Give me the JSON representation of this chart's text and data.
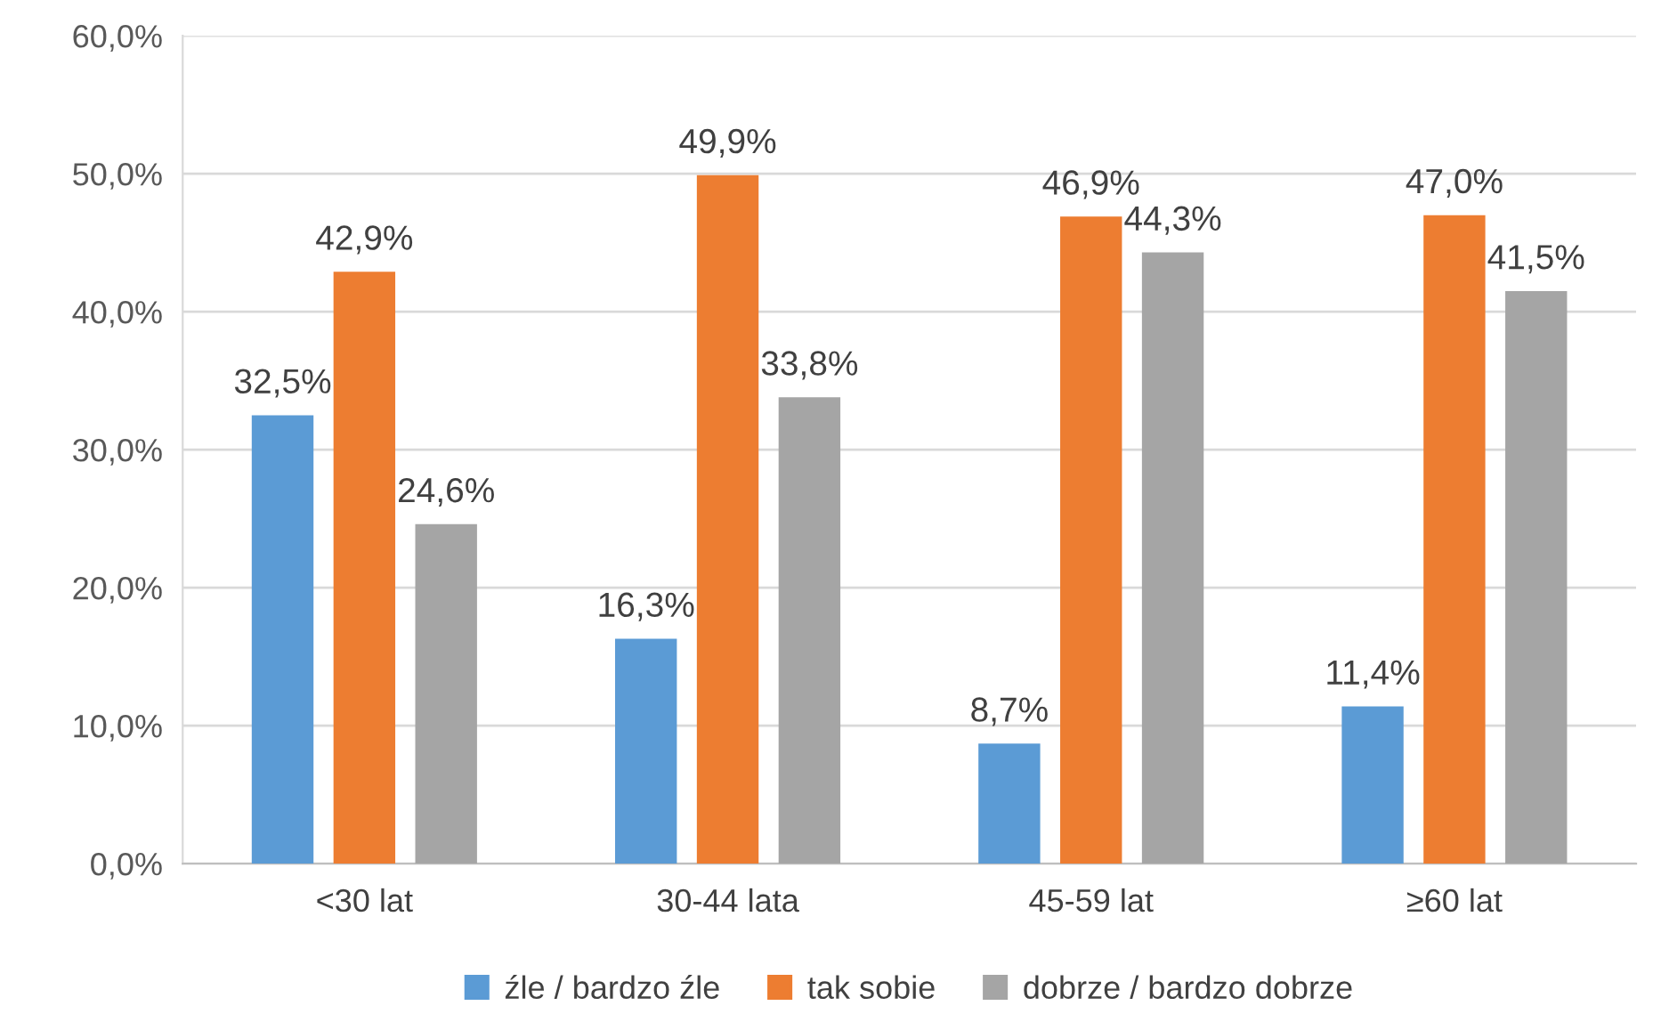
{
  "chart_data": {
    "type": "bar",
    "categories": [
      "<30 lat",
      "30-44 lata",
      "45-59 lat",
      "≥60 lat"
    ],
    "series": [
      {
        "name": "źle / bardzo źle",
        "color": "#5b9bd5",
        "values": [
          32.5,
          16.3,
          8.7,
          11.4
        ],
        "value_labels": [
          "32,5%",
          "16,3%",
          "8,7%",
          "11,4%"
        ]
      },
      {
        "name": "tak sobie",
        "color": "#ed7d31",
        "values": [
          42.9,
          49.9,
          46.9,
          47.0
        ],
        "value_labels": [
          "42,9%",
          "49,9%",
          "46,9%",
          "47,0%"
        ]
      },
      {
        "name": "dobrze / bardzo dobrze",
        "color": "#a5a5a5",
        "values": [
          24.6,
          33.8,
          44.3,
          41.5
        ],
        "value_labels": [
          "24,6%",
          "33,8%",
          "44,3%",
          "41,5%"
        ]
      }
    ],
    "ylim": [
      0,
      60
    ],
    "yticks": [
      {
        "value": 0,
        "label": "0,0%"
      },
      {
        "value": 10,
        "label": "10,0%"
      },
      {
        "value": 20,
        "label": "20,0%"
      },
      {
        "value": 30,
        "label": "30,0%"
      },
      {
        "value": 40,
        "label": "40,0%"
      },
      {
        "value": 50,
        "label": "50,0%"
      },
      {
        "value": 60,
        "label": "60,0%"
      }
    ],
    "grid": "y",
    "legend": "bottom"
  }
}
